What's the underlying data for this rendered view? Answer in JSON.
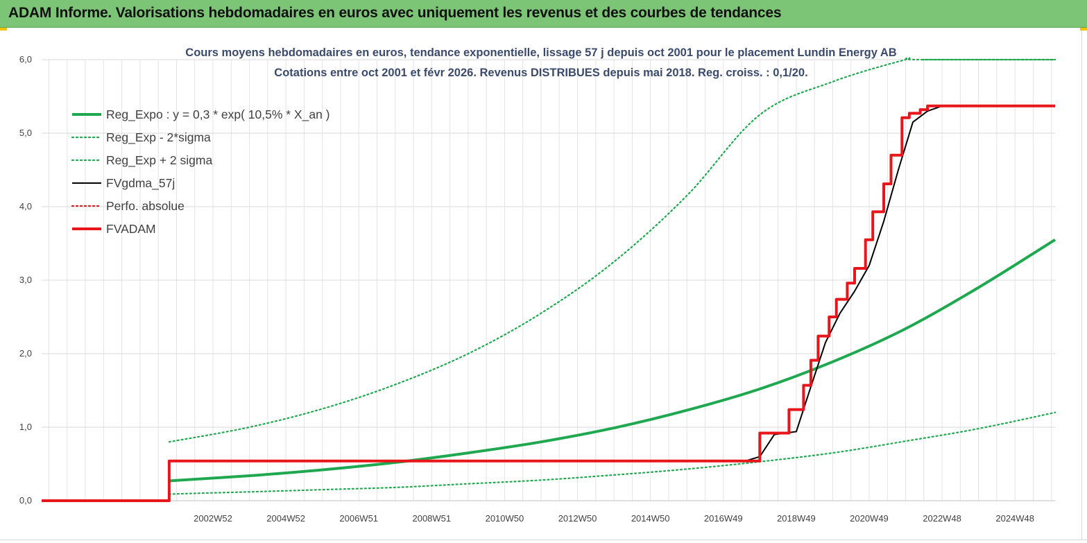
{
  "banner": {
    "title": "ADAM Informe. Valorisations hebdomadaires en euros avec uniquement les revenus et des courbes de tendances"
  },
  "colors": {
    "banner_bg": "#7cc576",
    "reg_green": "#1fa84f",
    "series_black": "#000000",
    "series_red": "#e8161b",
    "grid": "#d9d9d9"
  },
  "chart_data": {
    "type": "line",
    "title": [
      "Cours moyens hebdomadaires en euros, tendance exponentielle, lissage 57 j depuis oct 2001 pour le placement Lundin Energy AB",
      "Cotations entre oct 2001 et févr 2026. Revenus DISTRIBUES depuis mai 2018. Reg. croiss. : 0,1/20."
    ],
    "xlabel": "",
    "ylabel": "",
    "x_range": [
      1998.3,
      2026.1
    ],
    "ylim": [
      0,
      6
    ],
    "y_ticks": [
      0,
      1,
      2,
      3,
      4,
      5,
      6
    ],
    "y_tick_labels": [
      "0,0",
      "1,0",
      "2,0",
      "3,0",
      "4,0",
      "5,0",
      "6,0"
    ],
    "x_ticks": [
      {
        "label": "2002W52",
        "x": 2003.0
      },
      {
        "label": "2004W52",
        "x": 2005.0
      },
      {
        "label": "2006W51",
        "x": 2007.0
      },
      {
        "label": "2008W51",
        "x": 2009.0
      },
      {
        "label": "2010W50",
        "x": 2011.0
      },
      {
        "label": "2012W50",
        "x": 2013.0
      },
      {
        "label": "2014W50",
        "x": 2015.0
      },
      {
        "label": "2016W49",
        "x": 2017.0
      },
      {
        "label": "2018W49",
        "x": 2019.0
      },
      {
        "label": "2020W49",
        "x": 2021.0
      },
      {
        "label": "2022W48",
        "x": 2023.0
      },
      {
        "label": "2024W48",
        "x": 2025.0
      }
    ],
    "grid": true,
    "legend_position": "top-left",
    "series": [
      {
        "name": "Reg_Expo : y = 0,3 * exp( 10,5% *  X_an )",
        "style": "solid-thick",
        "color": "#1fa84f",
        "x": [
          2001.8,
          2004,
          2006,
          2008,
          2010,
          2012,
          2014,
          2016,
          2018,
          2020,
          2022,
          2024,
          2026.1
        ],
        "y": [
          0.27,
          0.34,
          0.42,
          0.52,
          0.65,
          0.8,
          0.99,
          1.23,
          1.52,
          1.89,
          2.34,
          2.9,
          3.55
        ]
      },
      {
        "name": "Reg_Exp - 2*sigma",
        "style": "dotted",
        "color": "#1fa84f",
        "x": [
          2001.8,
          2004,
          2006,
          2008,
          2010,
          2012,
          2014,
          2016,
          2018,
          2020,
          2022,
          2024,
          2026.1
        ],
        "y": [
          0.09,
          0.12,
          0.15,
          0.18,
          0.23,
          0.28,
          0.35,
          0.43,
          0.53,
          0.65,
          0.81,
          0.98,
          1.2
        ]
      },
      {
        "name": "Reg_Exp + 2 sigma",
        "style": "dotted",
        "color": "#1fa84f",
        "x": [
          2001.8,
          2004,
          2006,
          2008,
          2010,
          2012,
          2014,
          2016,
          2018,
          2020,
          2022,
          2022.3,
          2026.1
        ],
        "y": [
          0.8,
          1.0,
          1.25,
          1.58,
          2.0,
          2.55,
          3.25,
          4.15,
          5.25,
          5.7,
          6.0,
          6.0,
          6.0
        ]
      },
      {
        "name": "FVgdma_57j",
        "style": "solid",
        "color": "#000000",
        "x": [
          1998.3,
          2001.8,
          2001.8,
          2017.6,
          2018.0,
          2018.4,
          2019.0,
          2019.4,
          2019.8,
          2020.2,
          2020.6,
          2021.0,
          2021.4,
          2021.8,
          2022.2,
          2022.6,
          2023.0,
          2026.1
        ],
        "y": [
          0,
          0,
          0.54,
          0.54,
          0.6,
          0.9,
          0.94,
          1.55,
          2.15,
          2.55,
          2.85,
          3.2,
          3.8,
          4.5,
          5.15,
          5.3,
          5.37,
          5.37
        ]
      },
      {
        "name": "Perfo. absolue",
        "style": "dotted",
        "color": "#e8161b",
        "x": [],
        "y": []
      },
      {
        "name": "FVADAM",
        "style": "solid-thick-step",
        "color": "#e8161b",
        "x": [
          1998.3,
          2001.8,
          2001.8,
          2018.0,
          2018.0,
          2018.8,
          2018.8,
          2019.2,
          2019.2,
          2019.4,
          2019.4,
          2019.6,
          2019.6,
          2019.9,
          2019.9,
          2020.1,
          2020.1,
          2020.4,
          2020.4,
          2020.6,
          2020.6,
          2020.9,
          2020.9,
          2021.1,
          2021.1,
          2021.4,
          2021.4,
          2021.6,
          2021.6,
          2021.9,
          2021.9,
          2022.1,
          2022.1,
          2022.4,
          2022.4,
          2022.6,
          2022.6,
          2022.8,
          2022.8,
          2026.1
        ],
        "y": [
          0,
          0,
          0.54,
          0.54,
          0.92,
          0.92,
          1.24,
          1.24,
          1.57,
          1.57,
          1.91,
          1.91,
          2.24,
          2.24,
          2.5,
          2.5,
          2.74,
          2.74,
          2.96,
          2.96,
          3.16,
          3.16,
          3.55,
          3.55,
          3.93,
          3.93,
          4.31,
          4.31,
          4.7,
          4.7,
          5.21,
          5.21,
          5.27,
          5.27,
          5.32,
          5.32,
          5.37,
          5.37,
          5.37,
          5.37
        ]
      }
    ]
  }
}
